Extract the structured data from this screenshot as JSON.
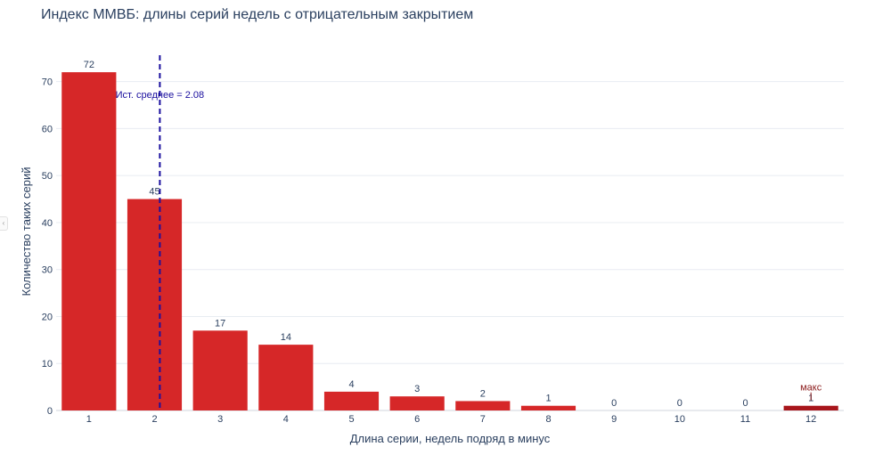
{
  "chart_data": {
    "type": "bar",
    "title": "Индекс ММВБ: длины серий недель с отрицательным закрытием",
    "xlabel": "Длина серии, недель подряд в минус",
    "ylabel": "Количество таких серий",
    "categories": [
      1,
      2,
      3,
      4,
      5,
      6,
      7,
      8,
      9,
      10,
      11,
      12
    ],
    "values": [
      72,
      45,
      17,
      14,
      4,
      3,
      2,
      1,
      0,
      0,
      0,
      1
    ],
    "data_labels": [
      "72",
      "45",
      "17",
      "14",
      "4",
      "3",
      "2",
      "1",
      "0",
      "0",
      "0",
      "1"
    ],
    "ylim": [
      0,
      76
    ],
    "yticks": [
      0,
      10,
      20,
      30,
      40,
      50,
      60,
      70
    ],
    "xlim": [
      0.5,
      12.5
    ],
    "grid": true,
    "legend": "none",
    "reference_line": {
      "x": 2.08,
      "label": "Ист. среднее = 2.08",
      "style": "dashed",
      "color": "#1a0f9e"
    },
    "max_annotation": {
      "category": 12,
      "label": "макс"
    },
    "colors": {
      "bar": "#d62728",
      "bar_max": "#a8161c",
      "max_label": "#8b1a1a"
    }
  }
}
